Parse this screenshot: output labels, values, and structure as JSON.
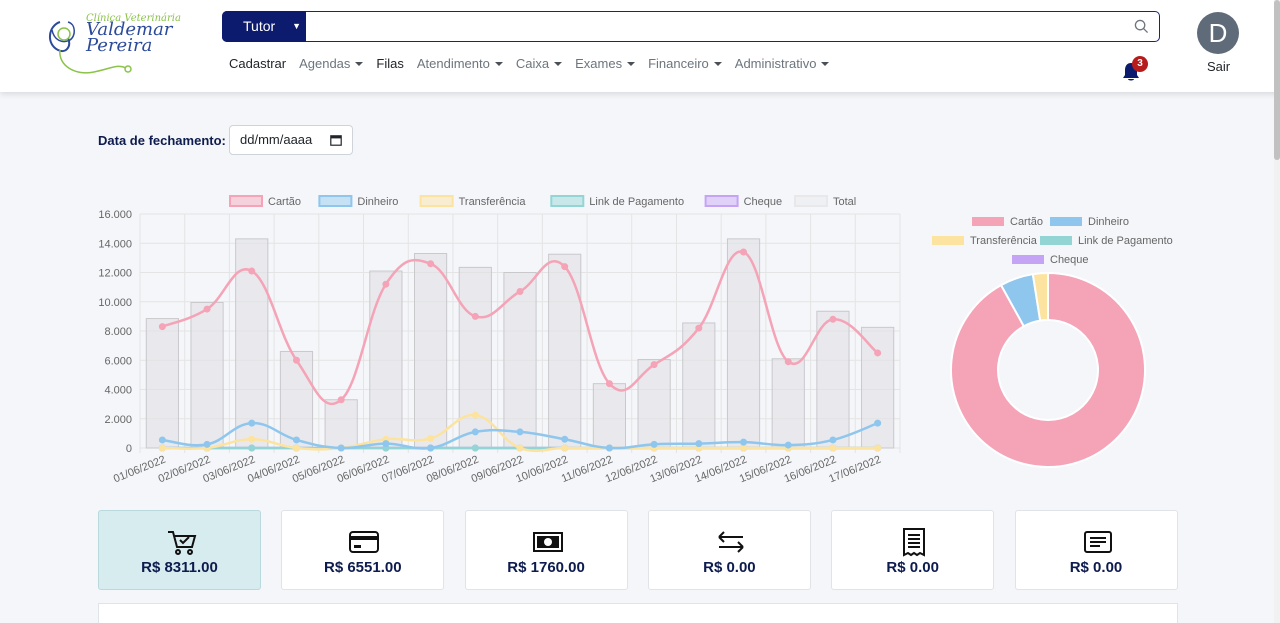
{
  "brand": {
    "subtitle": "Clínica Veterinária",
    "name_line1": "Valdemar",
    "name_line2": "Pereira"
  },
  "search": {
    "selected": "Tutor",
    "value": "",
    "placeholder": ""
  },
  "nav": [
    {
      "label": "Cadastrar",
      "dropdown": false,
      "active": true
    },
    {
      "label": "Agendas",
      "dropdown": true,
      "active": false
    },
    {
      "label": "Filas",
      "dropdown": false,
      "active": true
    },
    {
      "label": "Atendimento",
      "dropdown": true,
      "active": false
    },
    {
      "label": "Caixa",
      "dropdown": true,
      "active": false
    },
    {
      "label": "Exames",
      "dropdown": true,
      "active": false
    },
    {
      "label": "Financeiro",
      "dropdown": true,
      "active": false
    },
    {
      "label": "Administrativo",
      "dropdown": true,
      "active": false
    }
  ],
  "notifications": {
    "count": "3"
  },
  "user": {
    "initial": "D",
    "logout_label": "Sair"
  },
  "filter": {
    "date_label": "Data de fechamento:",
    "date_placeholder": "dd/mm/aaaa"
  },
  "colors": {
    "cartao": "#f5a3b6",
    "dinheiro": "#8ec6ee",
    "transferencia": "#fde3a0",
    "link": "#93d5d5",
    "cheque": "#c5a3f5",
    "total": "#e8e8ea",
    "accent": "#0d1b6e"
  },
  "chart_data": [
    {
      "type": "line",
      "categories": [
        "01/06/2022",
        "02/06/2022",
        "03/06/2022",
        "04/06/2022",
        "05/06/2022",
        "06/06/2022",
        "07/06/2022",
        "08/06/2022",
        "09/06/2022",
        "10/06/2022",
        "11/06/2022",
        "12/06/2022",
        "13/06/2022",
        "14/06/2022",
        "15/06/2022",
        "16/06/2022",
        "17/06/2022"
      ],
      "ylim": [
        0,
        16000
      ],
      "yticks": [
        "0",
        "2.000",
        "4.000",
        "6.000",
        "8.000",
        "10.000",
        "12.000",
        "14.000",
        "16.000"
      ],
      "grid": true,
      "legend_position": "top",
      "series": [
        {
          "name": "Cartão",
          "type": "line",
          "values": [
            8300,
            9500,
            12100,
            6000,
            3300,
            11200,
            12600,
            9000,
            10700,
            12400,
            4400,
            5700,
            8200,
            13400,
            5900,
            8800,
            6500
          ]
        },
        {
          "name": "Dinheiro",
          "type": "line",
          "values": [
            550,
            250,
            1700,
            550,
            0,
            300,
            0,
            1100,
            1100,
            600,
            0,
            250,
            300,
            400,
            200,
            550,
            1700
          ]
        },
        {
          "name": "Transferência",
          "type": "line",
          "values": [
            0,
            0,
            600,
            0,
            0,
            600,
            650,
            2250,
            0,
            0,
            0,
            0,
            0,
            0,
            0,
            0,
            0
          ]
        },
        {
          "name": "Link de Pagamento",
          "type": "line",
          "values": [
            0,
            0,
            0,
            0,
            0,
            0,
            0,
            0,
            0,
            0,
            0,
            0,
            0,
            0,
            0,
            0,
            0
          ]
        },
        {
          "name": "Cheque",
          "type": "line",
          "values": [
            0,
            0,
            0,
            0,
            0,
            0,
            0,
            0,
            0,
            0,
            0,
            0,
            0,
            0,
            0,
            0,
            0
          ]
        },
        {
          "name": "Total",
          "type": "bar",
          "values": [
            8850,
            9950,
            14300,
            6600,
            3300,
            12100,
            13300,
            12350,
            12000,
            13250,
            4400,
            6050,
            8550,
            14300,
            6100,
            9350,
            8250
          ]
        }
      ]
    },
    {
      "type": "pie",
      "legend_position": "top",
      "labels": [
        "Cartão",
        "Dinheiro",
        "Transferência",
        "Link de Pagamento",
        "Cheque"
      ],
      "values": [
        152800,
        9200,
        4150,
        0,
        0
      ]
    }
  ],
  "cards": [
    {
      "icon": "cart-check-icon",
      "value": "R$ 8311.00",
      "selected": true
    },
    {
      "icon": "credit-card-icon",
      "value": "R$ 6551.00",
      "selected": false
    },
    {
      "icon": "cash-icon",
      "value": "R$ 1760.00",
      "selected": false
    },
    {
      "icon": "transfer-arrows-icon",
      "value": "R$ 0.00",
      "selected": false
    },
    {
      "icon": "receipt-icon",
      "value": "R$ 0.00",
      "selected": false
    },
    {
      "icon": "document-icon",
      "value": "R$ 0.00",
      "selected": false
    }
  ]
}
